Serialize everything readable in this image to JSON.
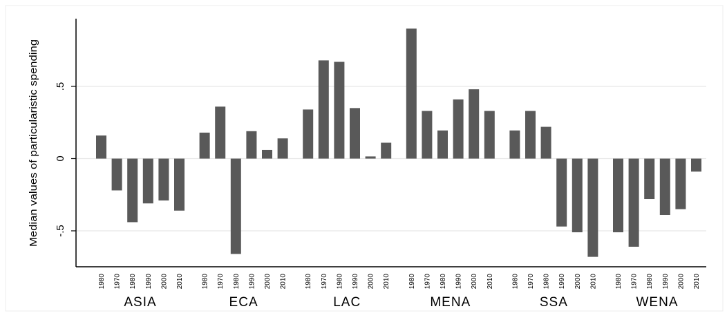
{
  "chart_data": {
    "type": "bar",
    "ylabel": "Median values of particularistic spending",
    "yticks": [
      -0.5,
      0,
      0.5
    ],
    "ytick_labels": [
      "-.5",
      "0",
      ".5"
    ],
    "ylim": [
      -0.76,
      0.97
    ],
    "grid": true,
    "bar_color": "#595959",
    "grid_color": "#e6e6e6",
    "groups": [
      {
        "name": "ASIA",
        "x_labels": [
          "1980",
          "1970",
          "1980",
          "1990",
          "2000",
          "2010"
        ],
        "values": [
          0.16,
          -0.22,
          -0.44,
          -0.31,
          -0.29,
          -0.36
        ]
      },
      {
        "name": "ECA",
        "x_labels": [
          "1980",
          "1970",
          "1980",
          "1990",
          "2000",
          "2010"
        ],
        "values": [
          0.18,
          0.36,
          -0.66,
          0.19,
          0.06,
          0.14
        ]
      },
      {
        "name": "LAC",
        "x_labels": [
          "1980",
          "1970",
          "1980",
          "1990",
          "2000",
          "2010"
        ],
        "values": [
          0.34,
          0.68,
          0.67,
          0.35,
          0.015,
          0.11
        ]
      },
      {
        "name": "MENA",
        "x_labels": [
          "1980",
          "1970",
          "1980",
          "1990",
          "2000",
          "2010"
        ],
        "values": [
          0.9,
          0.33,
          0.195,
          0.41,
          0.48,
          0.33
        ]
      },
      {
        "name": "SSA",
        "x_labels": [
          "1980",
          "1970",
          "1980",
          "1990",
          "2000",
          "2010"
        ],
        "values": [
          0.195,
          0.33,
          0.22,
          -0.47,
          -0.51,
          -0.68
        ]
      },
      {
        "name": "WENA",
        "x_labels": [
          "1980",
          "1970",
          "1980",
          "1990",
          "2000",
          "2010"
        ],
        "values": [
          -0.51,
          -0.61,
          -0.28,
          -0.39,
          -0.35,
          -0.09
        ]
      }
    ]
  }
}
